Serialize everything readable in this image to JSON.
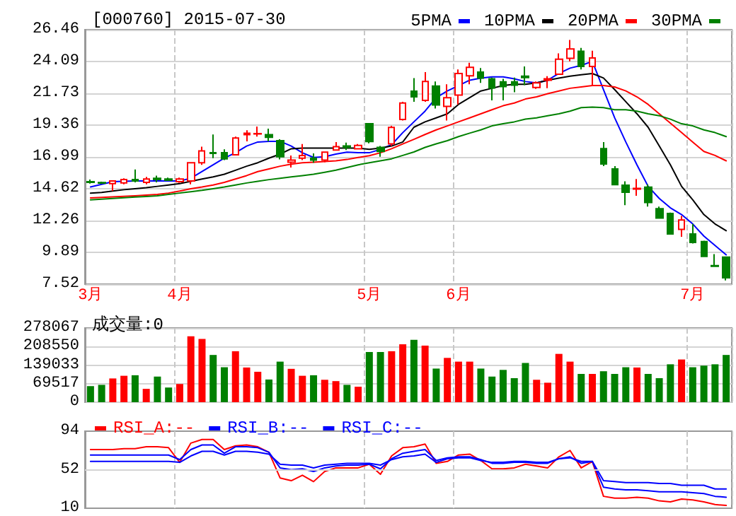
{
  "chart_data": [
    {
      "type": "candlestick",
      "title": "[000760] 2015-07-30",
      "categories": [
        "3月",
        null,
        null,
        null,
        null,
        null,
        null,
        null,
        "4月",
        null,
        null,
        null,
        null,
        null,
        null,
        null,
        null,
        null,
        null,
        null,
        null,
        null,
        null,
        null,
        null,
        "5月",
        null,
        null,
        null,
        null,
        null,
        null,
        null,
        "6月",
        null,
        null,
        null,
        null,
        null,
        null,
        null,
        null,
        null,
        null,
        null,
        null,
        null,
        null,
        null,
        null,
        null,
        null,
        null,
        null,
        "7月",
        null,
        null,
        null
      ],
      "ohlc": [
        [
          15.15,
          15.3,
          15.0,
          15.1
        ],
        [
          15.08,
          15.15,
          14.98,
          15.04
        ],
        [
          15.0,
          15.25,
          14.45,
          15.2
        ],
        [
          15.05,
          15.4,
          14.95,
          15.3
        ],
        [
          15.3,
          16.05,
          15.1,
          15.2
        ],
        [
          15.1,
          15.5,
          14.95,
          15.35
        ],
        [
          15.4,
          15.6,
          15.1,
          15.3
        ],
        [
          15.35,
          15.45,
          15.2,
          15.25
        ],
        [
          15.15,
          15.45,
          15.05,
          15.35
        ],
        [
          15.2,
          16.6,
          14.95,
          16.56
        ],
        [
          16.56,
          17.75,
          16.4,
          17.44
        ],
        [
          17.3,
          18.66,
          16.9,
          17.25
        ],
        [
          17.3,
          17.55,
          16.75,
          16.85
        ],
        [
          17.15,
          18.5,
          17.1,
          18.4
        ],
        [
          18.65,
          18.98,
          18.15,
          18.75
        ],
        [
          18.7,
          19.25,
          18.5,
          18.72
        ],
        [
          18.65,
          19.1,
          18.15,
          18.45
        ],
        [
          18.2,
          18.3,
          16.8,
          17.0
        ],
        [
          16.6,
          17.1,
          16.2,
          16.75
        ],
        [
          16.9,
          17.95,
          16.75,
          17.1
        ],
        [
          16.9,
          17.25,
          16.55,
          16.75
        ],
        [
          16.75,
          17.4,
          16.6,
          17.35
        ],
        [
          17.5,
          18.1,
          17.45,
          17.75
        ],
        [
          17.8,
          18.05,
          17.5,
          17.7
        ],
        [
          17.6,
          17.95,
          17.55,
          17.85
        ],
        [
          19.46,
          19.5,
          18.0,
          18.13
        ],
        [
          17.7,
          17.8,
          17.0,
          17.4
        ],
        [
          17.96,
          19.3,
          17.8,
          19.19
        ],
        [
          19.78,
          21.1,
          19.7,
          21.0
        ],
        [
          21.88,
          22.86,
          21.1,
          21.46
        ],
        [
          21.2,
          23.3,
          21.1,
          22.6
        ],
        [
          22.26,
          22.6,
          20.6,
          20.86
        ],
        [
          20.75,
          22.4,
          19.7,
          21.4
        ],
        [
          21.6,
          23.5,
          20.9,
          23.2
        ],
        [
          23.03,
          24.0,
          22.4,
          23.66
        ],
        [
          23.3,
          23.6,
          22.5,
          22.86
        ],
        [
          22.8,
          22.9,
          21.2,
          22.12
        ],
        [
          22.58,
          22.8,
          21.2,
          22.23
        ],
        [
          22.58,
          22.9,
          21.8,
          22.33
        ],
        [
          23.0,
          23.73,
          22.33,
          22.9
        ],
        [
          22.16,
          22.6,
          22.05,
          22.5
        ],
        [
          22.7,
          23.0,
          22.1,
          22.8
        ],
        [
          23.14,
          24.7,
          23.1,
          24.26
        ],
        [
          24.33,
          25.7,
          24.1,
          25.03
        ],
        [
          24.85,
          25.1,
          23.5,
          23.73
        ],
        [
          23.73,
          24.9,
          22.3,
          24.36
        ],
        [
          17.61,
          18.1,
          16.3,
          16.46
        ],
        [
          16.1,
          16.3,
          14.9,
          14.92
        ],
        [
          14.88,
          15.17,
          13.4,
          14.36
        ],
        [
          14.6,
          15.35,
          14.1,
          14.65
        ],
        [
          14.74,
          14.95,
          13.3,
          13.6
        ],
        [
          13.13,
          13.3,
          12.4,
          12.44
        ],
        [
          12.78,
          12.85,
          11.2,
          11.25
        ],
        [
          11.6,
          12.6,
          11.05,
          12.3
        ],
        [
          11.25,
          12.0,
          10.55,
          10.62
        ],
        [
          10.69,
          10.75,
          9.55,
          9.58
        ],
        [
          8.9,
          9.75,
          8.8,
          8.85
        ],
        [
          9.53,
          9.55,
          7.8,
          8.0
        ]
      ],
      "series": [
        {
          "name": "5PMA",
          "type": "line",
          "color": "#0000ff",
          "values": [
            14.75,
            14.95,
            15.15,
            15.17,
            15.2,
            15.2,
            15.2,
            15.2,
            15.2,
            15.4,
            15.9,
            16.4,
            16.9,
            17.3,
            17.8,
            18.1,
            18.15,
            18.15,
            17.8,
            17.3,
            16.95,
            17.0,
            17.2,
            17.35,
            17.3,
            17.3,
            17.55,
            17.9,
            18.8,
            19.6,
            20.4,
            21.4,
            21.9,
            22.3,
            22.7,
            22.86,
            22.95,
            22.95,
            22.8,
            22.6,
            22.5,
            22.7,
            23.2,
            23.6,
            23.8,
            24.1,
            22.0,
            19.9,
            18.1,
            16.4,
            14.8,
            13.9,
            13.2,
            12.7,
            12.0,
            11.1,
            10.4,
            9.7
          ]
        },
        {
          "name": "10PMA",
          "type": "line",
          "color": "#000000",
          "values": [
            14.3,
            14.35,
            14.45,
            14.55,
            14.62,
            14.7,
            14.8,
            14.9,
            15.0,
            15.17,
            15.35,
            15.5,
            15.7,
            16.0,
            16.3,
            16.56,
            16.9,
            17.2,
            17.6,
            17.65,
            17.65,
            17.65,
            17.65,
            17.65,
            17.65,
            17.55,
            17.65,
            17.8,
            18.1,
            19.2,
            19.6,
            19.9,
            20.2,
            20.9,
            21.4,
            21.9,
            22.1,
            22.3,
            22.4,
            22.4,
            22.5,
            22.7,
            22.86,
            23.0,
            23.1,
            23.2,
            22.86,
            22.0,
            21.1,
            20.2,
            19.2,
            17.8,
            16.4,
            14.8,
            13.8,
            12.7,
            12.0,
            11.5
          ]
        },
        {
          "name": "20PMA",
          "type": "line",
          "color": "#ff0000",
          "values": [
            13.94,
            13.98,
            14.02,
            14.06,
            14.1,
            14.15,
            14.2,
            14.3,
            14.45,
            14.62,
            14.75,
            14.9,
            15.1,
            15.35,
            15.6,
            15.9,
            16.1,
            16.3,
            16.45,
            16.56,
            16.6,
            16.65,
            16.7,
            16.8,
            16.95,
            17.08,
            17.3,
            17.6,
            17.96,
            18.3,
            18.66,
            19.0,
            19.3,
            19.6,
            19.9,
            20.2,
            20.5,
            20.8,
            21.0,
            21.3,
            21.46,
            21.7,
            21.9,
            22.1,
            22.2,
            22.3,
            22.3,
            22.2,
            21.9,
            21.46,
            20.9,
            20.2,
            19.5,
            18.8,
            18.1,
            17.4,
            17.1,
            16.7
          ]
        },
        {
          "name": "30PMA",
          "type": "line",
          "color": "#008000",
          "values": [
            13.8,
            13.85,
            13.9,
            13.95,
            14.0,
            14.05,
            14.1,
            14.2,
            14.3,
            14.4,
            14.5,
            14.62,
            14.75,
            14.9,
            15.05,
            15.17,
            15.3,
            15.4,
            15.5,
            15.6,
            15.7,
            15.85,
            16.0,
            16.2,
            16.4,
            16.56,
            16.7,
            16.85,
            17.1,
            17.36,
            17.7,
            17.96,
            18.2,
            18.5,
            18.76,
            19.0,
            19.3,
            19.46,
            19.6,
            19.8,
            19.9,
            20.06,
            20.2,
            20.4,
            20.66,
            20.7,
            20.66,
            20.5,
            20.5,
            20.4,
            20.2,
            20.06,
            19.8,
            19.46,
            19.3,
            19.0,
            18.8,
            18.5
          ]
        }
      ],
      "ylim": [
        7.52,
        26.46
      ],
      "yticks": [
        7.52,
        9.89,
        12.26,
        14.62,
        16.99,
        19.36,
        21.73,
        24.09,
        26.46
      ],
      "grid": true,
      "legend": "top right",
      "marker": "none"
    },
    {
      "type": "bar",
      "title": "成交量:0",
      "categories": [
        null,
        null,
        null,
        null,
        null,
        null,
        null,
        null,
        null,
        null,
        null,
        null,
        null,
        null,
        null,
        null,
        null,
        null,
        null,
        null,
        null,
        null,
        null,
        null,
        null,
        null,
        null,
        null,
        null,
        null,
        null,
        null,
        null,
        null,
        null,
        null,
        null,
        null,
        null,
        null,
        null,
        null,
        null,
        null,
        null,
        null,
        null,
        null,
        null,
        null,
        null,
        null,
        null,
        null,
        null,
        null,
        null,
        null
      ],
      "values": [
        60000,
        65000,
        89000,
        99000,
        101000,
        50000,
        96000,
        55000,
        68000,
        247000,
        237000,
        177000,
        131000,
        191000,
        130000,
        114000,
        85000,
        152000,
        125000,
        99000,
        101000,
        84000,
        79000,
        65000,
        58000,
        188000,
        188000,
        191000,
        217000,
        234000,
        212000,
        126000,
        166000,
        152000,
        152000,
        126000,
        96000,
        121000,
        90000,
        147000,
        84000,
        73000,
        181000,
        152000,
        106000,
        106000,
        116000,
        106000,
        131000,
        130000,
        106000,
        90000,
        142000,
        160000,
        131000,
        137000,
        142000,
        177000
      ],
      "colors": [
        "#008000",
        "#008000",
        "#ff0000",
        "#ff0000",
        "#008000",
        "#ff0000",
        "#008000",
        "#008000",
        "#ff0000",
        "#ff0000",
        "#ff0000",
        "#008000",
        "#008000",
        "#ff0000",
        "#ff0000",
        "#ff0000",
        "#008000",
        "#008000",
        "#ff0000",
        "#ff0000",
        "#008000",
        "#ff0000",
        "#ff0000",
        "#008000",
        "#ff0000",
        "#008000",
        "#008000",
        "#ff0000",
        "#ff0000",
        "#008000",
        "#ff0000",
        "#008000",
        "#ff0000",
        "#ff0000",
        "#ff0000",
        "#008000",
        "#008000",
        "#008000",
        "#008000",
        "#008000",
        "#ff0000",
        "#ff0000",
        "#ff0000",
        "#ff0000",
        "#008000",
        "#ff0000",
        "#008000",
        "#008000",
        "#008000",
        "#ff0000",
        "#008000",
        "#008000",
        "#008000",
        "#ff0000",
        "#008000",
        "#008000",
        "#008000",
        "#008000"
      ],
      "ylim": [
        0,
        278067
      ],
      "yticks": [
        0,
        69517,
        139033,
        208550,
        278067
      ],
      "grid": true,
      "tick_labels": "y"
    },
    {
      "type": "line",
      "categories": [
        null,
        null,
        null,
        null,
        null,
        null,
        null,
        null,
        null,
        null,
        null,
        null,
        null,
        null,
        null,
        null,
        null,
        null,
        null,
        null,
        null,
        null,
        null,
        null,
        null,
        null,
        null,
        null,
        null,
        null,
        null,
        null,
        null,
        null,
        null,
        null,
        null,
        null,
        null,
        null,
        null,
        null,
        null,
        null,
        null,
        null,
        null,
        null,
        null,
        null,
        null,
        null,
        null,
        null,
        null,
        null,
        null,
        null
      ],
      "series": [
        {
          "name": "RSI_A:--",
          "color": "#ff0000",
          "values": [
            74,
            74,
            74,
            75,
            75,
            77,
            77,
            76,
            60,
            81,
            85,
            85,
            74,
            78,
            79,
            77,
            71,
            43,
            40,
            46,
            39,
            50,
            54,
            54,
            54,
            58,
            47,
            67,
            76,
            77,
            80,
            59,
            61,
            68,
            69,
            62,
            53,
            53,
            54,
            58,
            56,
            54,
            66,
            73,
            54,
            61,
            23,
            21,
            21,
            22,
            21,
            18,
            17,
            20,
            19,
            17,
            14,
            13
          ]
        },
        {
          "name": "RSI_B:--",
          "color": "#0000ff",
          "values": [
            68,
            68,
            68,
            68,
            68,
            68,
            68,
            68,
            63,
            74,
            79,
            79,
            70,
            77,
            77,
            76,
            71,
            54,
            52,
            53,
            50,
            54,
            56,
            57,
            57,
            58,
            53,
            64,
            70,
            72,
            74,
            62,
            65,
            66,
            66,
            63,
            59,
            59,
            60,
            60,
            59,
            59,
            64,
            66,
            59,
            61,
            33,
            31,
            30,
            30,
            29,
            28,
            28,
            28,
            27,
            26,
            23,
            22
          ]
        },
        {
          "name": "RSI_C:--",
          "color": "#0000ff",
          "values": [
            61,
            61,
            61,
            61,
            61,
            61,
            61,
            61,
            60,
            67,
            72,
            72,
            68,
            72,
            72,
            71,
            69,
            58,
            57,
            57,
            54,
            57,
            58,
            59,
            59,
            59,
            57,
            63,
            66,
            67,
            69,
            60,
            64,
            65,
            65,
            62,
            60,
            60,
            61,
            61,
            60,
            60,
            64,
            65,
            61,
            61,
            40,
            39,
            38,
            38,
            38,
            37,
            37,
            35,
            35,
            35,
            31,
            31
          ]
        }
      ],
      "ylim": [
        10,
        94
      ],
      "yticks": [
        10,
        52,
        94
      ],
      "ref_lines": [
        {
          "axis": "y",
          "value": 52,
          "color": "#d4d4d4"
        }
      ],
      "grid": "x",
      "legend": "top left",
      "marker": "none",
      "tick_labels": "y"
    }
  ]
}
